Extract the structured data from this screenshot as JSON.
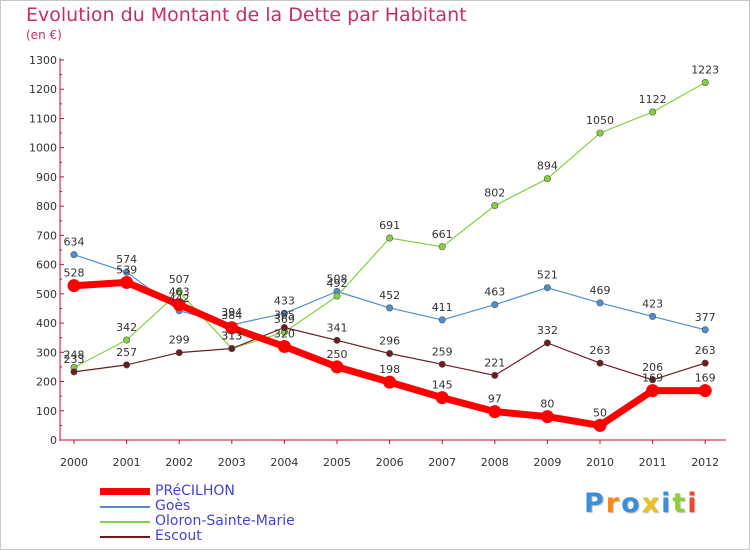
{
  "title": "Evolution du Montant de la Dette par Habitant",
  "subtitle": "(en €)",
  "logo_text": "Proxiti",
  "chart_data": {
    "type": "line",
    "title": "Evolution du Montant de la Dette par Habitant",
    "ylabel": "(en €)",
    "xlabel": "",
    "x": [
      "2000",
      "2001",
      "2002",
      "2003",
      "2004",
      "2005",
      "2006",
      "2007",
      "2008",
      "2009",
      "2010",
      "2011",
      "2012"
    ],
    "ylim": [
      0,
      1300
    ],
    "yticks": [
      0,
      100,
      200,
      300,
      400,
      500,
      600,
      700,
      800,
      900,
      1000,
      1100,
      1200,
      1300
    ],
    "grid": false,
    "legend_position": "bottom-left",
    "series": [
      {
        "name": "PRéCILHON",
        "color": "#ff0000",
        "values": [
          528,
          539,
          463,
          384,
          320,
          250,
          198,
          145,
          97,
          80,
          50,
          169,
          169
        ]
      },
      {
        "name": "Goès",
        "color": "#4f8fcf",
        "values": [
          634,
          574,
          442,
          394,
          433,
          508,
          452,
          411,
          463,
          521,
          469,
          423,
          377
        ]
      },
      {
        "name": "Oloron-Sainte-Marie",
        "color": "#86d040",
        "values": [
          248,
          342,
          507,
          313,
          369,
          492,
          691,
          661,
          802,
          894,
          1050,
          1122,
          1223
        ]
      },
      {
        "name": "Escout",
        "color": "#6b1d1d",
        "values": [
          233,
          257,
          299,
          313,
          385,
          341,
          296,
          259,
          221,
          332,
          263,
          206,
          263
        ]
      }
    ]
  }
}
